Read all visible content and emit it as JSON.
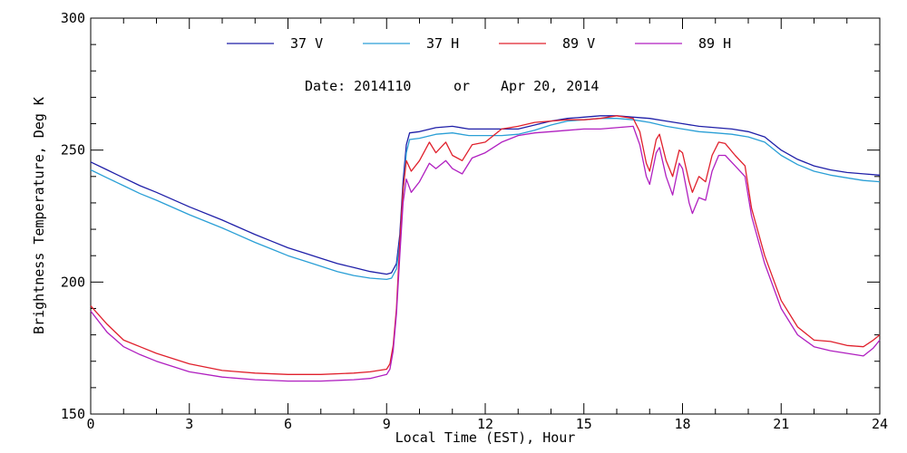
{
  "chart_data": {
    "type": "line",
    "date_label": "Date: 2014110",
    "date_connector": "or",
    "date_text": "Apr 20, 2014",
    "xlabel": "Local Time (EST), Hour",
    "ylabel": "Brightness Temperature, Deg K",
    "xlim": [
      0,
      24
    ],
    "ylim": [
      150,
      300
    ],
    "x_ticks": [
      0,
      3,
      6,
      9,
      12,
      15,
      18,
      21,
      24
    ],
    "y_ticks": [
      150,
      200,
      250,
      300
    ],
    "x_minor_step": 1,
    "y_minor_step": 10,
    "grid": false,
    "legend_position": "top",
    "series": [
      {
        "name": "37 V",
        "color": "#1f1fa8",
        "points": [
          [
            0,
            245.5
          ],
          [
            0.5,
            242.5
          ],
          [
            1,
            239.5
          ],
          [
            1.5,
            236.5
          ],
          [
            2,
            234
          ],
          [
            3,
            228.5
          ],
          [
            4,
            223.5
          ],
          [
            5,
            218
          ],
          [
            5.5,
            215.5
          ],
          [
            6,
            213
          ],
          [
            6.5,
            211
          ],
          [
            7,
            209
          ],
          [
            7.5,
            207
          ],
          [
            8,
            205.5
          ],
          [
            8.5,
            204
          ],
          [
            9,
            203
          ],
          [
            9.15,
            203.5
          ],
          [
            9.3,
            207
          ],
          [
            9.4,
            218
          ],
          [
            9.5,
            238
          ],
          [
            9.6,
            252
          ],
          [
            9.7,
            256.5
          ],
          [
            10,
            257
          ],
          [
            10.5,
            258.5
          ],
          [
            11,
            259
          ],
          [
            11.5,
            258
          ],
          [
            12,
            258
          ],
          [
            12.5,
            258
          ],
          [
            13,
            258
          ],
          [
            13.5,
            259.5
          ],
          [
            14,
            261
          ],
          [
            14.5,
            262
          ],
          [
            15,
            262.5
          ],
          [
            15.5,
            263
          ],
          [
            16,
            263
          ],
          [
            16.5,
            262.5
          ],
          [
            17,
            262
          ],
          [
            17.5,
            261
          ],
          [
            18,
            260
          ],
          [
            18.5,
            259
          ],
          [
            19,
            258.5
          ],
          [
            19.5,
            258
          ],
          [
            20,
            257
          ],
          [
            20.5,
            255
          ],
          [
            21,
            250
          ],
          [
            21.5,
            246.5
          ],
          [
            22,
            244
          ],
          [
            22.5,
            242.5
          ],
          [
            23,
            241.5
          ],
          [
            23.5,
            241
          ],
          [
            24,
            240.5
          ]
        ]
      },
      {
        "name": "37 H",
        "color": "#2a9fd6",
        "points": [
          [
            0,
            242.5
          ],
          [
            0.5,
            239.5
          ],
          [
            1,
            236.5
          ],
          [
            1.5,
            233.5
          ],
          [
            2,
            231
          ],
          [
            3,
            225.5
          ],
          [
            4,
            220.5
          ],
          [
            5,
            215
          ],
          [
            5.5,
            212.5
          ],
          [
            6,
            210
          ],
          [
            6.5,
            208
          ],
          [
            7,
            206
          ],
          [
            7.5,
            204
          ],
          [
            8,
            202.5
          ],
          [
            8.5,
            201.5
          ],
          [
            9,
            201
          ],
          [
            9.15,
            201.5
          ],
          [
            9.3,
            205
          ],
          [
            9.4,
            215
          ],
          [
            9.5,
            234
          ],
          [
            9.6,
            249
          ],
          [
            9.7,
            254
          ],
          [
            10,
            254.5
          ],
          [
            10.5,
            256
          ],
          [
            11,
            256.5
          ],
          [
            11.5,
            255.5
          ],
          [
            12,
            255.5
          ],
          [
            12.5,
            255.5
          ],
          [
            13,
            256
          ],
          [
            13.5,
            257.5
          ],
          [
            14,
            259.5
          ],
          [
            14.5,
            261
          ],
          [
            15,
            261.5
          ],
          [
            15.5,
            262
          ],
          [
            16,
            262
          ],
          [
            16.5,
            261.5
          ],
          [
            17,
            260.5
          ],
          [
            17.5,
            259
          ],
          [
            18,
            258
          ],
          [
            18.5,
            257
          ],
          [
            19,
            256.5
          ],
          [
            19.5,
            256
          ],
          [
            20,
            255
          ],
          [
            20.5,
            253
          ],
          [
            21,
            248
          ],
          [
            21.5,
            244.5
          ],
          [
            22,
            242
          ],
          [
            22.5,
            240.5
          ],
          [
            23,
            239.5
          ],
          [
            23.5,
            238.5
          ],
          [
            24,
            238
          ]
        ]
      },
      {
        "name": "89 V",
        "color": "#e0202c",
        "points": [
          [
            0,
            191
          ],
          [
            0.5,
            184
          ],
          [
            1,
            178
          ],
          [
            1.5,
            175.5
          ],
          [
            2,
            173
          ],
          [
            3,
            169
          ],
          [
            4,
            166.5
          ],
          [
            5,
            165.5
          ],
          [
            6,
            165
          ],
          [
            7,
            165
          ],
          [
            8,
            165.5
          ],
          [
            8.5,
            166
          ],
          [
            9,
            167
          ],
          [
            9.1,
            169
          ],
          [
            9.2,
            176
          ],
          [
            9.3,
            190
          ],
          [
            9.4,
            215
          ],
          [
            9.5,
            235
          ],
          [
            9.6,
            246
          ],
          [
            9.75,
            242
          ],
          [
            10,
            246
          ],
          [
            10.3,
            253
          ],
          [
            10.5,
            249
          ],
          [
            10.8,
            253
          ],
          [
            11,
            248
          ],
          [
            11.3,
            246
          ],
          [
            11.6,
            252
          ],
          [
            12,
            253
          ],
          [
            12.5,
            258
          ],
          [
            13,
            259
          ],
          [
            13.5,
            260.5
          ],
          [
            14,
            261
          ],
          [
            14.5,
            261.5
          ],
          [
            15,
            261.5
          ],
          [
            15.5,
            262
          ],
          [
            16,
            263
          ],
          [
            16.5,
            262
          ],
          [
            16.7,
            257
          ],
          [
            16.9,
            245
          ],
          [
            17,
            242
          ],
          [
            17.2,
            254
          ],
          [
            17.3,
            256
          ],
          [
            17.5,
            246
          ],
          [
            17.7,
            240
          ],
          [
            17.9,
            250
          ],
          [
            18,
            249
          ],
          [
            18.2,
            238
          ],
          [
            18.3,
            234
          ],
          [
            18.5,
            240
          ],
          [
            18.7,
            238
          ],
          [
            18.9,
            248
          ],
          [
            19.1,
            253
          ],
          [
            19.3,
            252.5
          ],
          [
            19.6,
            248
          ],
          [
            19.9,
            244
          ],
          [
            20.1,
            228
          ],
          [
            20.5,
            210
          ],
          [
            21,
            193
          ],
          [
            21.5,
            183
          ],
          [
            22,
            178
          ],
          [
            22.5,
            177.5
          ],
          [
            23,
            176
          ],
          [
            23.5,
            175.5
          ],
          [
            23.8,
            178
          ],
          [
            24,
            180
          ]
        ]
      },
      {
        "name": "89 H",
        "color": "#b01fc0",
        "points": [
          [
            0,
            189
          ],
          [
            0.5,
            181
          ],
          [
            1,
            175.5
          ],
          [
            1.5,
            172.5
          ],
          [
            2,
            170
          ],
          [
            3,
            166
          ],
          [
            4,
            164
          ],
          [
            5,
            163
          ],
          [
            6,
            162.5
          ],
          [
            7,
            162.5
          ],
          [
            8,
            163
          ],
          [
            8.5,
            163.5
          ],
          [
            9,
            165
          ],
          [
            9.1,
            167
          ],
          [
            9.2,
            174
          ],
          [
            9.3,
            188
          ],
          [
            9.4,
            210
          ],
          [
            9.5,
            230
          ],
          [
            9.6,
            239
          ],
          [
            9.75,
            234
          ],
          [
            10,
            238
          ],
          [
            10.3,
            245
          ],
          [
            10.5,
            243
          ],
          [
            10.8,
            246
          ],
          [
            11,
            243
          ],
          [
            11.3,
            241
          ],
          [
            11.6,
            247
          ],
          [
            12,
            249
          ],
          [
            12.5,
            253
          ],
          [
            13,
            255.5
          ],
          [
            13.5,
            256.5
          ],
          [
            14,
            257
          ],
          [
            14.5,
            257.5
          ],
          [
            15,
            258
          ],
          [
            15.5,
            258
          ],
          [
            16,
            258.5
          ],
          [
            16.5,
            259
          ],
          [
            16.7,
            252
          ],
          [
            16.9,
            240
          ],
          [
            17,
            237
          ],
          [
            17.2,
            249
          ],
          [
            17.3,
            251
          ],
          [
            17.5,
            240
          ],
          [
            17.7,
            233
          ],
          [
            17.9,
            245
          ],
          [
            18,
            243
          ],
          [
            18.2,
            230
          ],
          [
            18.3,
            226
          ],
          [
            18.5,
            232
          ],
          [
            18.7,
            231
          ],
          [
            18.9,
            242
          ],
          [
            19.1,
            248
          ],
          [
            19.3,
            248
          ],
          [
            19.6,
            244
          ],
          [
            19.9,
            240
          ],
          [
            20.1,
            225
          ],
          [
            20.5,
            207
          ],
          [
            21,
            190
          ],
          [
            21.5,
            180
          ],
          [
            22,
            175.5
          ],
          [
            22.5,
            174
          ],
          [
            23,
            173
          ],
          [
            23.5,
            172
          ],
          [
            23.8,
            175
          ],
          [
            24,
            178
          ]
        ]
      }
    ]
  }
}
